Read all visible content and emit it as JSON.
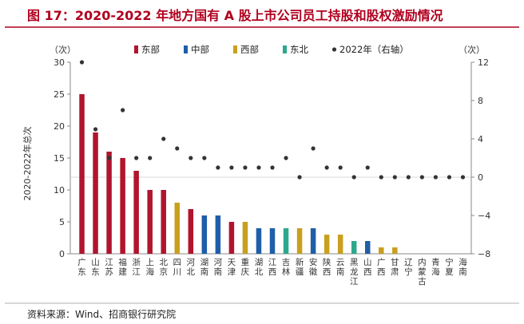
{
  "title": "图 17：2020-2022 年地方国有 A 股上市公司员工持股和股权激励情况",
  "source": "资料来源：Wind、招商银行研究院",
  "colors": {
    "title": "#b0001e",
    "east": "#b0152d",
    "central": "#1f5ea8",
    "west": "#c8a01e",
    "northeast": "#2ea88c",
    "dot": "#333333",
    "axis": "#888888"
  },
  "chart_data": {
    "type": "bar",
    "ylabel": "2020-2022年总次",
    "left_unit": "（次）",
    "right_unit": "（次）",
    "ylim": [
      0,
      30
    ],
    "yticks": [
      0,
      5,
      10,
      15,
      20,
      25,
      30
    ],
    "y2lim": [
      -8,
      12
    ],
    "y2ticks": [
      12,
      8,
      4,
      0,
      -4,
      -8
    ],
    "grid": false,
    "legend_position": "top",
    "legend": [
      {
        "label": "东部",
        "key": "east",
        "kind": "bar"
      },
      {
        "label": "中部",
        "key": "central",
        "kind": "bar"
      },
      {
        "label": "西部",
        "key": "west",
        "kind": "bar"
      },
      {
        "label": "东北",
        "key": "northeast",
        "kind": "bar"
      },
      {
        "label": "2022年（右轴）",
        "key": "dot",
        "kind": "dot"
      }
    ],
    "categories": [
      "广东",
      "山东",
      "江苏",
      "福建",
      "浙江",
      "上海",
      "北京",
      "四川",
      "河北",
      "湖南",
      "河南",
      "天津",
      "重庆",
      "湖北",
      "江西",
      "吉林",
      "新疆",
      "安徽",
      "陕西",
      "云南",
      "黑龙江",
      "山西",
      "广西",
      "甘肃",
      "辽宁",
      "内蒙古",
      "青海",
      "宁夏",
      "海南"
    ],
    "region": [
      "east",
      "east",
      "east",
      "east",
      "east",
      "east",
      "east",
      "west",
      "east",
      "central",
      "central",
      "east",
      "west",
      "central",
      "central",
      "northeast",
      "west",
      "central",
      "west",
      "west",
      "northeast",
      "central",
      "west",
      "west",
      "northeast",
      "west",
      "west",
      "west",
      "east"
    ],
    "values": [
      25,
      19,
      16,
      15,
      13,
      10,
      10,
      8,
      7,
      6,
      6,
      5,
      5,
      4,
      4,
      4,
      4,
      4,
      3,
      3,
      2,
      2,
      1,
      1,
      0,
      0,
      0,
      0,
      0
    ],
    "series_2022": [
      12,
      5,
      2,
      7,
      2,
      2,
      4,
      3,
      2,
      2,
      1,
      1,
      1,
      1,
      1,
      2,
      0,
      3,
      1,
      1,
      0,
      1,
      0,
      0,
      0,
      0,
      0,
      0,
      0
    ]
  }
}
